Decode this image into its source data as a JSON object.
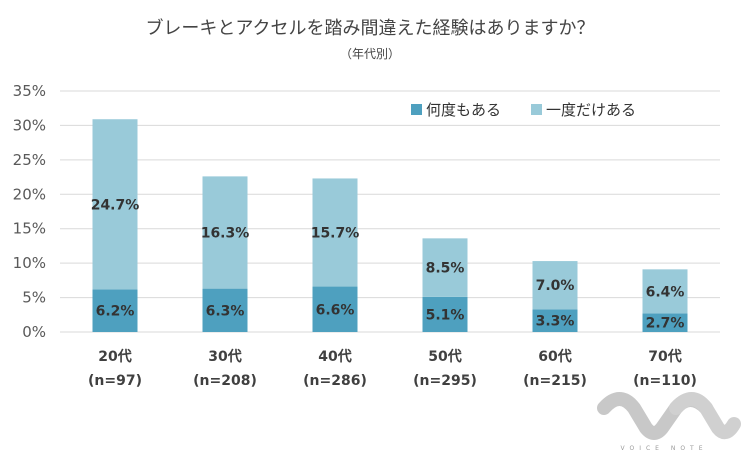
{
  "chart_data": {
    "type": "bar",
    "stacked": true,
    "title": "ブレーキとアクセルを踏み間違えた経験はありますか？",
    "subtitle": "（年代別）",
    "categories": [
      "20代",
      "30代",
      "40代",
      "50代",
      "60代",
      "70代"
    ],
    "category_sublabels": [
      "(n=97)",
      "(n=208)",
      "(n=286)",
      "(n=295)",
      "(n=215)",
      "(n=110)"
    ],
    "series": [
      {
        "name": "何度もある",
        "color": "#4ea0bf",
        "values": [
          6.2,
          6.3,
          6.6,
          5.1,
          3.3,
          2.7
        ],
        "labels": [
          "6.2%",
          "6.3%",
          "6.6%",
          "5.1%",
          "3.3%",
          "2.7%"
        ]
      },
      {
        "name": "一度だけある",
        "color": "#99cad9",
        "values": [
          24.7,
          16.3,
          15.7,
          8.5,
          7.0,
          6.4
        ],
        "labels": [
          "24.7%",
          "16.3%",
          "15.7%",
          "8.5%",
          "7.0%",
          "6.4%"
        ]
      }
    ],
    "ylim": [
      0,
      35
    ],
    "yticks": [
      0,
      5,
      10,
      15,
      20,
      25,
      30,
      35
    ],
    "ytick_labels": [
      "0%",
      "5%",
      "10%",
      "15%",
      "20%",
      "25%",
      "30%",
      "35%"
    ],
    "grid": true,
    "legend_position": "top-right"
  },
  "watermark": {
    "text": "VOICE NOTE",
    "color": "#c8c8c8"
  }
}
